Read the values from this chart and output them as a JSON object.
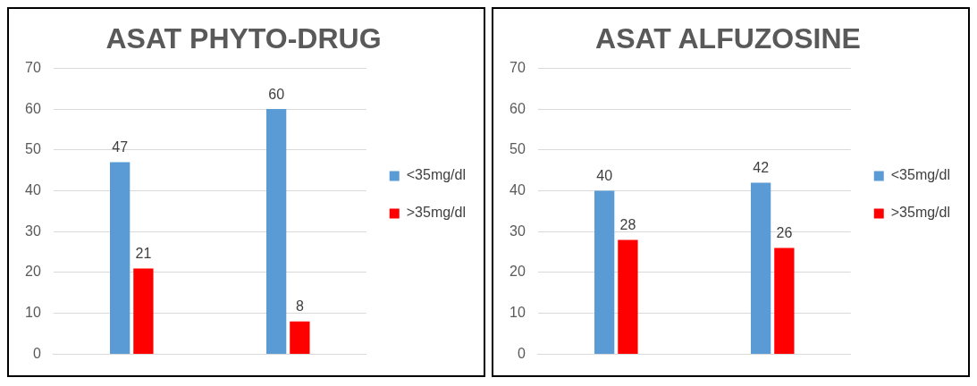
{
  "chart_data": [
    {
      "type": "bar",
      "title": "ASAT PHYTO-DRUG",
      "categories": [
        null,
        null
      ],
      "series": [
        {
          "name": "<35mg/dl",
          "color": "#5b9bd5",
          "values": [
            47,
            60
          ]
        },
        {
          "name": ">35mg/dl",
          "color": "#ff0000",
          "values": [
            21,
            8
          ]
        }
      ],
      "ylim": [
        0,
        70
      ],
      "yticks": [
        0,
        10,
        20,
        30,
        40,
        50,
        60,
        70
      ],
      "grid": "y",
      "legend": "right",
      "data_labels": true
    },
    {
      "type": "bar",
      "title": "ASAT ALFUZOSINE",
      "categories": [
        null,
        null
      ],
      "series": [
        {
          "name": "<35mg/dl",
          "color": "#5b9bd5",
          "values": [
            40,
            42
          ]
        },
        {
          "name": ">35mg/dl",
          "color": "#ff0000",
          "values": [
            28,
            26
          ]
        }
      ],
      "ylim": [
        0,
        70
      ],
      "yticks": [
        0,
        10,
        20,
        30,
        40,
        50,
        60,
        70
      ],
      "grid": "y",
      "legend": "right",
      "data_labels": true
    }
  ]
}
